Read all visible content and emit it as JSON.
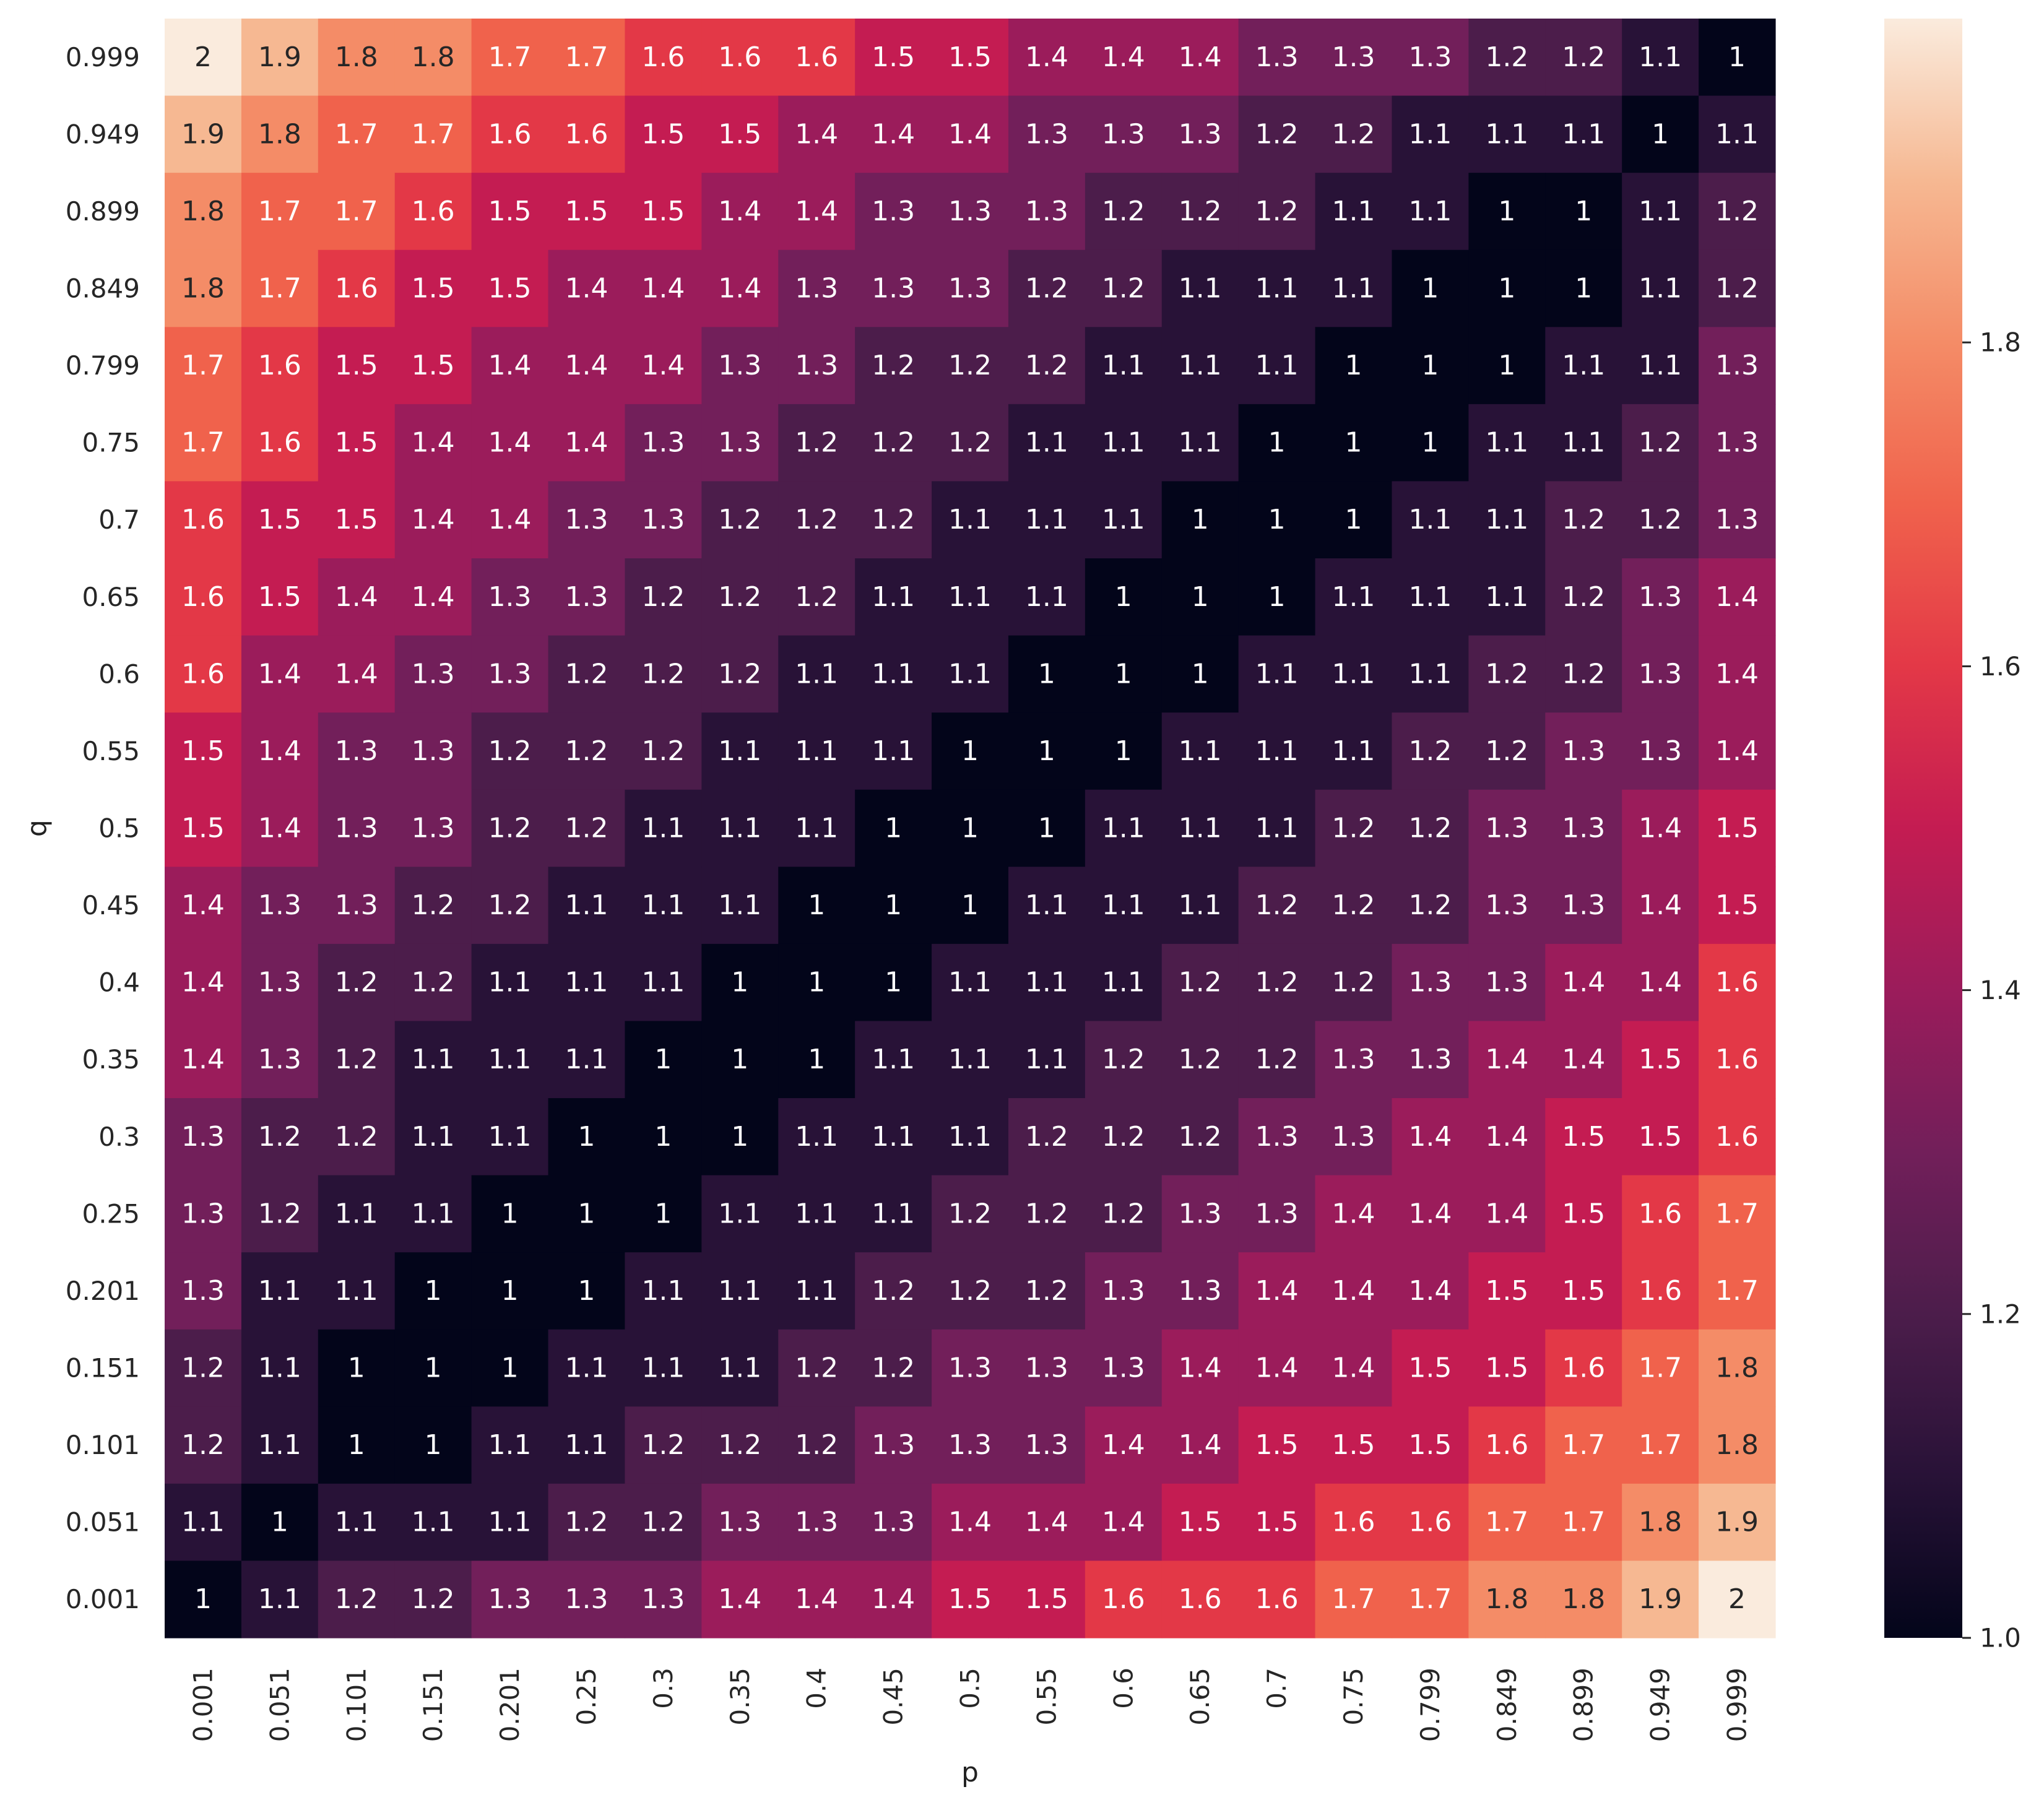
{
  "chart_data": {
    "type": "heatmap",
    "xlabel": "p",
    "ylabel": "q",
    "x_categories": [
      "0.001",
      "0.051",
      "0.101",
      "0.151",
      "0.201",
      "0.25",
      "0.3",
      "0.35",
      "0.4",
      "0.45",
      "0.5",
      "0.55",
      "0.6",
      "0.65",
      "0.7",
      "0.75",
      "0.799",
      "0.849",
      "0.899",
      "0.949",
      "0.999"
    ],
    "y_categories": [
      "0.999",
      "0.949",
      "0.899",
      "0.849",
      "0.799",
      "0.75",
      "0.7",
      "0.65",
      "0.6",
      "0.55",
      "0.5",
      "0.45",
      "0.4",
      "0.35",
      "0.3",
      "0.25",
      "0.201",
      "0.151",
      "0.101",
      "0.051",
      "0.001"
    ],
    "values": [
      [
        2,
        1.9,
        1.8,
        1.8,
        1.7,
        1.7,
        1.6,
        1.6,
        1.6,
        1.5,
        1.5,
        1.4,
        1.4,
        1.4,
        1.3,
        1.3,
        1.3,
        1.2,
        1.2,
        1.1,
        1
      ],
      [
        1.9,
        1.8,
        1.7,
        1.7,
        1.6,
        1.6,
        1.5,
        1.5,
        1.4,
        1.4,
        1.4,
        1.3,
        1.3,
        1.3,
        1.2,
        1.2,
        1.1,
        1.1,
        1.1,
        1,
        1.1
      ],
      [
        1.8,
        1.7,
        1.7,
        1.6,
        1.5,
        1.5,
        1.5,
        1.4,
        1.4,
        1.3,
        1.3,
        1.3,
        1.2,
        1.2,
        1.2,
        1.1,
        1.1,
        1,
        1,
        1.1,
        1.2
      ],
      [
        1.8,
        1.7,
        1.6,
        1.5,
        1.5,
        1.4,
        1.4,
        1.4,
        1.3,
        1.3,
        1.3,
        1.2,
        1.2,
        1.1,
        1.1,
        1.1,
        1,
        1,
        1,
        1.1,
        1.2
      ],
      [
        1.7,
        1.6,
        1.5,
        1.5,
        1.4,
        1.4,
        1.4,
        1.3,
        1.3,
        1.2,
        1.2,
        1.2,
        1.1,
        1.1,
        1.1,
        1,
        1,
        1,
        1.1,
        1.1,
        1.3
      ],
      [
        1.7,
        1.6,
        1.5,
        1.4,
        1.4,
        1.4,
        1.3,
        1.3,
        1.2,
        1.2,
        1.2,
        1.1,
        1.1,
        1.1,
        1,
        1,
        1,
        1.1,
        1.1,
        1.2,
        1.3
      ],
      [
        1.6,
        1.5,
        1.5,
        1.4,
        1.4,
        1.3,
        1.3,
        1.2,
        1.2,
        1.2,
        1.1,
        1.1,
        1.1,
        1,
        1,
        1,
        1.1,
        1.1,
        1.2,
        1.2,
        1.3
      ],
      [
        1.6,
        1.5,
        1.4,
        1.4,
        1.3,
        1.3,
        1.2,
        1.2,
        1.2,
        1.1,
        1.1,
        1.1,
        1,
        1,
        1,
        1.1,
        1.1,
        1.1,
        1.2,
        1.3,
        1.4
      ],
      [
        1.6,
        1.4,
        1.4,
        1.3,
        1.3,
        1.2,
        1.2,
        1.2,
        1.1,
        1.1,
        1.1,
        1,
        1,
        1,
        1.1,
        1.1,
        1.1,
        1.2,
        1.2,
        1.3,
        1.4
      ],
      [
        1.5,
        1.4,
        1.3,
        1.3,
        1.2,
        1.2,
        1.2,
        1.1,
        1.1,
        1.1,
        1,
        1,
        1,
        1.1,
        1.1,
        1.1,
        1.2,
        1.2,
        1.3,
        1.3,
        1.4
      ],
      [
        1.5,
        1.4,
        1.3,
        1.3,
        1.2,
        1.2,
        1.1,
        1.1,
        1.1,
        1,
        1,
        1,
        1.1,
        1.1,
        1.1,
        1.2,
        1.2,
        1.3,
        1.3,
        1.4,
        1.5
      ],
      [
        1.4,
        1.3,
        1.3,
        1.2,
        1.2,
        1.1,
        1.1,
        1.1,
        1,
        1,
        1,
        1.1,
        1.1,
        1.1,
        1.2,
        1.2,
        1.2,
        1.3,
        1.3,
        1.4,
        1.5
      ],
      [
        1.4,
        1.3,
        1.2,
        1.2,
        1.1,
        1.1,
        1.1,
        1,
        1,
        1,
        1.1,
        1.1,
        1.1,
        1.2,
        1.2,
        1.2,
        1.3,
        1.3,
        1.4,
        1.4,
        1.6
      ],
      [
        1.4,
        1.3,
        1.2,
        1.1,
        1.1,
        1.1,
        1,
        1,
        1,
        1.1,
        1.1,
        1.1,
        1.2,
        1.2,
        1.2,
        1.3,
        1.3,
        1.4,
        1.4,
        1.5,
        1.6
      ],
      [
        1.3,
        1.2,
        1.2,
        1.1,
        1.1,
        1,
        1,
        1,
        1.1,
        1.1,
        1.1,
        1.2,
        1.2,
        1.2,
        1.3,
        1.3,
        1.4,
        1.4,
        1.5,
        1.5,
        1.6
      ],
      [
        1.3,
        1.2,
        1.1,
        1.1,
        1,
        1,
        1,
        1.1,
        1.1,
        1.1,
        1.2,
        1.2,
        1.2,
        1.3,
        1.3,
        1.4,
        1.4,
        1.4,
        1.5,
        1.6,
        1.7
      ],
      [
        1.3,
        1.1,
        1.1,
        1,
        1,
        1,
        1.1,
        1.1,
        1.1,
        1.2,
        1.2,
        1.2,
        1.3,
        1.3,
        1.4,
        1.4,
        1.4,
        1.5,
        1.5,
        1.6,
        1.7
      ],
      [
        1.2,
        1.1,
        1,
        1,
        1,
        1.1,
        1.1,
        1.1,
        1.2,
        1.2,
        1.3,
        1.3,
        1.3,
        1.4,
        1.4,
        1.4,
        1.5,
        1.5,
        1.6,
        1.7,
        1.8
      ],
      [
        1.2,
        1.1,
        1,
        1,
        1.1,
        1.1,
        1.2,
        1.2,
        1.2,
        1.3,
        1.3,
        1.3,
        1.4,
        1.4,
        1.5,
        1.5,
        1.5,
        1.6,
        1.7,
        1.7,
        1.8
      ],
      [
        1.1,
        1,
        1.1,
        1.1,
        1.1,
        1.2,
        1.2,
        1.3,
        1.3,
        1.3,
        1.4,
        1.4,
        1.4,
        1.5,
        1.5,
        1.6,
        1.6,
        1.7,
        1.7,
        1.8,
        1.9
      ],
      [
        1,
        1.1,
        1.2,
        1.2,
        1.3,
        1.3,
        1.3,
        1.4,
        1.4,
        1.4,
        1.5,
        1.5,
        1.6,
        1.6,
        1.6,
        1.7,
        1.7,
        1.8,
        1.8,
        1.9,
        2
      ]
    ],
    "vmin": 1.0,
    "vmax": 2.0,
    "colormap": "rocket",
    "colorbar_ticks": [
      1.0,
      1.2,
      1.4,
      1.6,
      1.8
    ],
    "colorbar_tick_labels": [
      "1.0",
      "1.2",
      "1.4",
      "1.6",
      "1.8"
    ],
    "annotations": true,
    "legend": "colorbar-right"
  }
}
